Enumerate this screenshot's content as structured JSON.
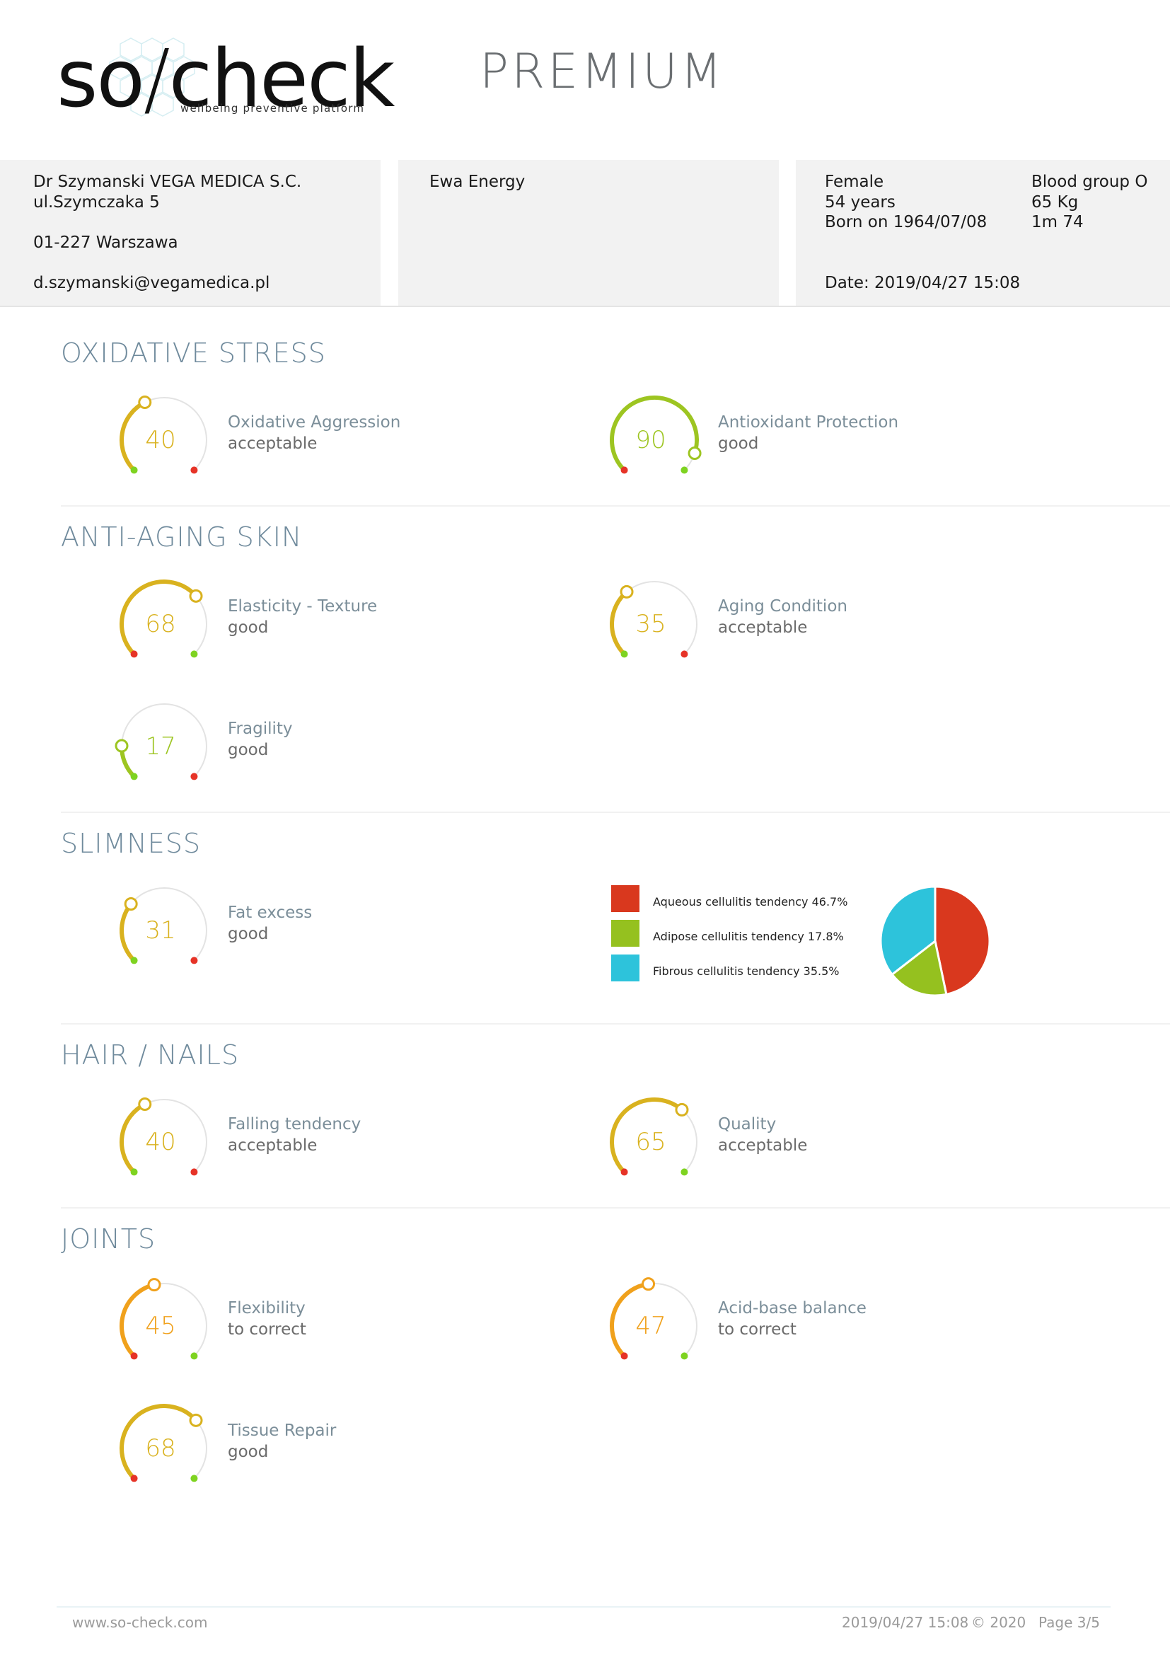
{
  "colors": {
    "yellow": "#d9b21f",
    "lime": "#9dc521",
    "orange": "#f0a11c",
    "red": "#e63327",
    "green": "#7ed321",
    "track": "#e3e3e3",
    "section_title": "#6f8a9c"
  },
  "header": {
    "logo_text_left": "so",
    "logo_text_right": "check",
    "logo_tagline": "wellbeing preventive platform",
    "edition": "PREMIUM"
  },
  "doctor": {
    "name": "Dr Szymanski VEGA MEDICA S.C.",
    "street": "ul.Szymczaka 5",
    "city": "01-227 Warszawa",
    "email": "d.szymanski@vegamedica.pl"
  },
  "patient": {
    "name": "Ewa Energy"
  },
  "details": {
    "gender": "Female",
    "age": "54 years",
    "born": "Born on 1964/07/08",
    "blood_group": "Blood group O",
    "weight": "65 Kg",
    "height": "1m 74",
    "date": "Date: 2019/04/27 15:08"
  },
  "sections": {
    "oxidative": {
      "title": "OXIDATIVE STRESS",
      "metrics": [
        {
          "value": 40,
          "label": "Oxidative Aggression",
          "status": "acceptable",
          "color": "yellow",
          "direction": "low_good"
        },
        {
          "value": 90,
          "label": "Antioxidant Protection",
          "status": "good",
          "color": "lime",
          "direction": "high_good"
        }
      ]
    },
    "skin": {
      "title": "ANTI-AGING SKIN",
      "metrics": [
        {
          "value": 68,
          "label": "Elasticity - Texture",
          "status": "good",
          "color": "yellow",
          "direction": "high_good"
        },
        {
          "value": 35,
          "label": "Aging Condition",
          "status": "acceptable",
          "color": "yellow",
          "direction": "low_good"
        },
        {
          "value": 17,
          "label": "Fragility",
          "status": "good",
          "color": "lime",
          "direction": "low_good"
        }
      ]
    },
    "slimness": {
      "title": "SLIMNESS",
      "metrics": [
        {
          "value": 31,
          "label": "Fat excess",
          "status": "good",
          "color": "yellow",
          "direction": "low_good"
        }
      ]
    },
    "hair": {
      "title": "HAIR / NAILS",
      "metrics": [
        {
          "value": 40,
          "label": "Falling tendency",
          "status": "acceptable",
          "color": "yellow",
          "direction": "low_good"
        },
        {
          "value": 65,
          "label": "Quality",
          "status": "acceptable",
          "color": "yellow",
          "direction": "high_good"
        }
      ]
    },
    "joints": {
      "title": "JOINTS",
      "metrics": [
        {
          "value": 45,
          "label": "Flexibility",
          "status": "to correct",
          "color": "orange",
          "direction": "high_good"
        },
        {
          "value": 47,
          "label": "Acid-base balance",
          "status": "to correct",
          "color": "orange",
          "direction": "high_good"
        },
        {
          "value": 68,
          "label": "Tissue Repair",
          "status": "good",
          "color": "yellow",
          "direction": "high_good"
        }
      ]
    }
  },
  "chart_data": {
    "type": "pie",
    "title": "",
    "labels": [
      "Aqueous cellulitis tendency 46.7%",
      "Adipose cellulitis tendency 17.8%",
      "Fibrous cellulitis tendency 35.5%"
    ],
    "values": [
      46.7,
      17.8,
      35.5
    ],
    "colors": [
      "#d9381e",
      "#95c11f",
      "#2dc3db"
    ]
  },
  "footer": {
    "website": "www.so-check.com",
    "timestamp": "2019/04/27 15:08",
    "copyright": "© 2020",
    "page": "Page 3/5"
  }
}
